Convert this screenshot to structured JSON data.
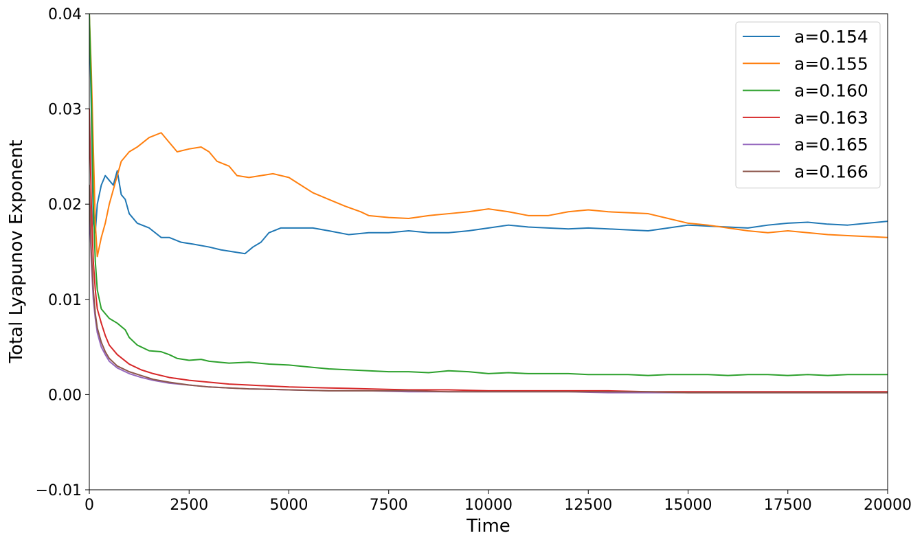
{
  "chart_data": {
    "type": "line",
    "title": "",
    "xlabel": "Time",
    "ylabel": "Total Lyapunov Exponent",
    "xlim": [
      0,
      20000
    ],
    "ylim": [
      -0.01,
      0.04
    ],
    "xticks": [
      0,
      2500,
      5000,
      7500,
      10000,
      12500,
      15000,
      17500,
      20000
    ],
    "xtick_labels": [
      "0",
      "2500",
      "5000",
      "7500",
      "10000",
      "12500",
      "15000",
      "17500",
      "20000"
    ],
    "yticks": [
      -0.01,
      0.0,
      0.01,
      0.02,
      0.03,
      0.04
    ],
    "ytick_labels": [
      "−0.01",
      "0.00",
      "0.01",
      "0.02",
      "0.03",
      "0.04"
    ],
    "grid": false,
    "legend_position": "upper right",
    "series": [
      {
        "name": "a=0.154",
        "color": "#1f77b4",
        "x": [
          0,
          50,
          100,
          150,
          200,
          300,
          400,
          500,
          600,
          700,
          800,
          900,
          1000,
          1200,
          1500,
          1800,
          2000,
          2300,
          2600,
          3000,
          3300,
          3600,
          3900,
          4100,
          4300,
          4500,
          4800,
          5200,
          5600,
          6000,
          6500,
          7000,
          7500,
          8000,
          8500,
          9000,
          9500,
          10000,
          10500,
          11000,
          11500,
          12000,
          12500,
          13000,
          13500,
          14000,
          14500,
          15000,
          15500,
          16000,
          16500,
          17000,
          17500,
          18000,
          18500,
          19000,
          19500,
          20000
        ],
        "y": [
          0.04,
          0.03,
          0.018,
          0.017,
          0.02,
          0.022,
          0.023,
          0.0225,
          0.022,
          0.0235,
          0.021,
          0.0205,
          0.019,
          0.018,
          0.0175,
          0.0165,
          0.0165,
          0.016,
          0.0158,
          0.0155,
          0.0152,
          0.015,
          0.0148,
          0.0155,
          0.016,
          0.017,
          0.0175,
          0.0175,
          0.0175,
          0.0172,
          0.0168,
          0.017,
          0.017,
          0.0172,
          0.017,
          0.017,
          0.0172,
          0.0175,
          0.0178,
          0.0176,
          0.0175,
          0.0174,
          0.0175,
          0.0174,
          0.0173,
          0.0172,
          0.0175,
          0.0178,
          0.0177,
          0.0176,
          0.0175,
          0.0178,
          0.018,
          0.0181,
          0.0179,
          0.0178,
          0.018,
          0.0182
        ]
      },
      {
        "name": "a=0.155",
        "color": "#ff7f0e",
        "x": [
          0,
          50,
          100,
          150,
          200,
          300,
          400,
          500,
          600,
          700,
          800,
          1000,
          1200,
          1500,
          1800,
          2000,
          2200,
          2500,
          2800,
          3000,
          3200,
          3500,
          3700,
          4000,
          4300,
          4600,
          5000,
          5300,
          5600,
          6000,
          6400,
          6800,
          7000,
          7500,
          8000,
          8500,
          9000,
          9500,
          10000,
          10500,
          11000,
          11500,
          12000,
          12500,
          13000,
          13500,
          14000,
          14500,
          15000,
          15500,
          16000,
          16500,
          17000,
          17500,
          18000,
          18500,
          19000,
          19500,
          20000
        ],
        "y": [
          0.04,
          0.034,
          0.026,
          0.018,
          0.0145,
          0.0165,
          0.018,
          0.02,
          0.0215,
          0.023,
          0.0245,
          0.0255,
          0.026,
          0.027,
          0.0275,
          0.0265,
          0.0255,
          0.0258,
          0.026,
          0.0255,
          0.0245,
          0.024,
          0.023,
          0.0228,
          0.023,
          0.0232,
          0.0228,
          0.022,
          0.0212,
          0.0205,
          0.0198,
          0.0192,
          0.0188,
          0.0186,
          0.0185,
          0.0188,
          0.019,
          0.0192,
          0.0195,
          0.0192,
          0.0188,
          0.0188,
          0.0192,
          0.0194,
          0.0192,
          0.0191,
          0.019,
          0.0185,
          0.018,
          0.0178,
          0.0175,
          0.0172,
          0.017,
          0.0172,
          0.017,
          0.0168,
          0.0167,
          0.0166,
          0.0165
        ]
      },
      {
        "name": "a=0.160",
        "color": "#2ca02c",
        "x": [
          0,
          50,
          100,
          150,
          200,
          300,
          400,
          500,
          700,
          900,
          1000,
          1200,
          1500,
          1800,
          2000,
          2200,
          2500,
          2800,
          3000,
          3500,
          4000,
          4500,
          5000,
          5500,
          6000,
          6500,
          7000,
          7500,
          8000,
          8500,
          9000,
          9500,
          10000,
          10500,
          11000,
          11500,
          12000,
          12500,
          13000,
          13500,
          14000,
          14500,
          15000,
          15500,
          16000,
          16500,
          17000,
          17500,
          18000,
          18500,
          19000,
          19500,
          20000
        ],
        "y": [
          0.04,
          0.032,
          0.02,
          0.014,
          0.011,
          0.009,
          0.0085,
          0.008,
          0.0075,
          0.0068,
          0.006,
          0.0052,
          0.0046,
          0.0045,
          0.0042,
          0.0038,
          0.0036,
          0.0037,
          0.0035,
          0.0033,
          0.0034,
          0.0032,
          0.0031,
          0.0029,
          0.0027,
          0.0026,
          0.0025,
          0.0024,
          0.0024,
          0.0023,
          0.0025,
          0.0024,
          0.0022,
          0.0023,
          0.0022,
          0.0022,
          0.0022,
          0.0021,
          0.0021,
          0.0021,
          0.002,
          0.0021,
          0.0021,
          0.0021,
          0.002,
          0.0021,
          0.0021,
          0.002,
          0.0021,
          0.002,
          0.0021,
          0.0021,
          0.0021
        ]
      },
      {
        "name": "a=0.163",
        "color": "#d62728",
        "x": [
          0,
          50,
          100,
          150,
          200,
          300,
          400,
          500,
          700,
          1000,
          1300,
          1600,
          2000,
          2500,
          3000,
          3500,
          4000,
          5000,
          6000,
          7000,
          8000,
          9000,
          10000,
          11000,
          12000,
          13000,
          14000,
          15000,
          16000,
          17000,
          18000,
          19000,
          20000
        ],
        "y": [
          0.03,
          0.02,
          0.014,
          0.011,
          0.009,
          0.0075,
          0.0062,
          0.0052,
          0.0042,
          0.0032,
          0.0026,
          0.0022,
          0.0018,
          0.0015,
          0.0013,
          0.0011,
          0.001,
          0.0008,
          0.0007,
          0.0006,
          0.0005,
          0.0005,
          0.0004,
          0.0004,
          0.0004,
          0.0004,
          0.0003,
          0.0003,
          0.0003,
          0.0003,
          0.0003,
          0.0003,
          0.0003
        ]
      },
      {
        "name": "a=0.165",
        "color": "#9467bd",
        "x": [
          0,
          50,
          100,
          150,
          200,
          300,
          400,
          500,
          700,
          1000,
          1300,
          1600,
          2000,
          2500,
          3000,
          3500,
          4000,
          5000,
          6000,
          7000,
          8000,
          9000,
          10000,
          11000,
          12000,
          13000,
          14000,
          15000,
          16000,
          17000,
          18000,
          19000,
          20000
        ],
        "y": [
          0.02,
          0.014,
          0.01,
          0.008,
          0.0065,
          0.005,
          0.0042,
          0.0035,
          0.0028,
          0.0022,
          0.0018,
          0.0015,
          0.0012,
          0.001,
          0.0008,
          0.0007,
          0.0006,
          0.0005,
          0.0004,
          0.0004,
          0.0003,
          0.0003,
          0.0003,
          0.0003,
          0.0003,
          0.0002,
          0.0002,
          0.0002,
          0.0002,
          0.0002,
          0.0002,
          0.0002,
          0.0002
        ]
      },
      {
        "name": "a=0.166",
        "color": "#8c564b",
        "x": [
          0,
          50,
          100,
          150,
          200,
          300,
          400,
          500,
          700,
          1000,
          1300,
          1600,
          2000,
          2500,
          3000,
          3500,
          4000,
          5000,
          6000,
          7000,
          8000,
          9000,
          10000,
          11000,
          12000,
          13000,
          14000,
          15000,
          16000,
          17000,
          18000,
          19000,
          20000
        ],
        "y": [
          0.022,
          0.015,
          0.011,
          0.0085,
          0.007,
          0.0055,
          0.0045,
          0.0038,
          0.003,
          0.0024,
          0.002,
          0.0016,
          0.0013,
          0.001,
          0.0008,
          0.0007,
          0.0006,
          0.0005,
          0.0004,
          0.0004,
          0.0004,
          0.0003,
          0.0003,
          0.0003,
          0.0003,
          0.0003,
          0.0003,
          0.0002,
          0.0002,
          0.0002,
          0.0002,
          0.0002,
          0.0002
        ]
      }
    ]
  }
}
